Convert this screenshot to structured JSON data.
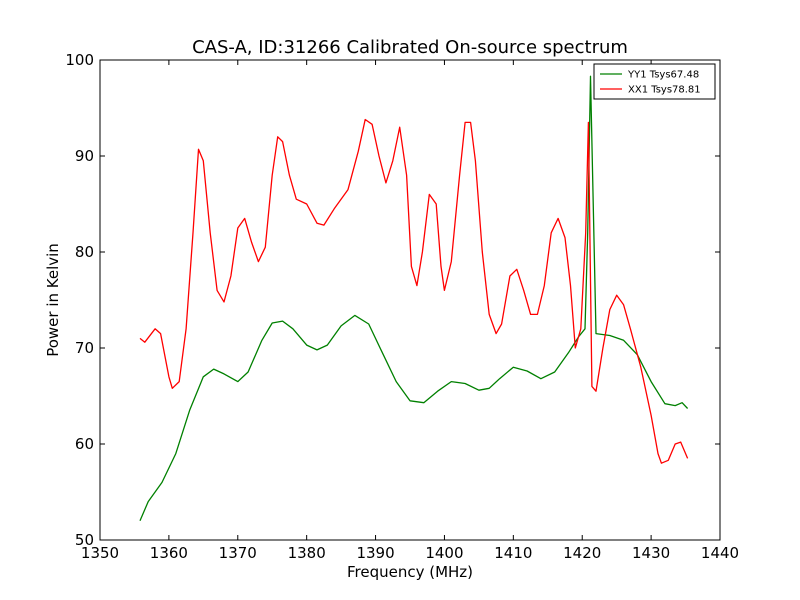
{
  "chart_data": {
    "type": "line",
    "title": "CAS-A, ID:31266 Calibrated On-source spectrum",
    "xlabel": "Frequency (MHz)",
    "ylabel": "Power in Kelvin",
    "xlim": [
      1350,
      1440
    ],
    "ylim": [
      50,
      100
    ],
    "xticks": [
      1350,
      1360,
      1370,
      1380,
      1390,
      1400,
      1410,
      1420,
      1430,
      1440
    ],
    "yticks": [
      50,
      60,
      70,
      80,
      90,
      100
    ],
    "grid": false,
    "legend_position": "top-right",
    "series": [
      {
        "name": "YY1 Tsys67.48",
        "color": "#008000",
        "x": [
          1355.8,
          1357,
          1359,
          1361,
          1363,
          1365,
          1366.5,
          1368,
          1370,
          1371.5,
          1373.5,
          1375,
          1376.5,
          1378,
          1380,
          1381.5,
          1383,
          1385,
          1387,
          1389,
          1391,
          1393,
          1395,
          1397,
          1399,
          1401,
          1403,
          1405,
          1406.5,
          1408,
          1410,
          1412,
          1414,
          1416,
          1418,
          1419.5,
          1420.4,
          1420.8,
          1421.2,
          1422,
          1424,
          1426,
          1428,
          1430,
          1432,
          1433.5,
          1434.5,
          1435.3
        ],
        "y": [
          52.0,
          54.0,
          56.0,
          59.0,
          63.5,
          67.0,
          67.8,
          67.3,
          66.5,
          67.5,
          70.8,
          72.6,
          72.8,
          72.0,
          70.3,
          69.8,
          70.3,
          72.3,
          73.4,
          72.5,
          69.5,
          66.5,
          64.5,
          64.3,
          65.5,
          66.5,
          66.3,
          65.6,
          65.8,
          66.8,
          68.0,
          67.6,
          66.8,
          67.5,
          69.5,
          71.2,
          72.0,
          82.0,
          98.3,
          71.5,
          71.3,
          70.8,
          69.3,
          66.5,
          64.2,
          64.0,
          64.3,
          63.7
        ]
      },
      {
        "name": "XX1 Tsys78.81",
        "color": "#ff0000",
        "x": [
          1355.8,
          1356.5,
          1358,
          1358.8,
          1360,
          1360.5,
          1361.5,
          1362.5,
          1363.5,
          1364.3,
          1365,
          1366,
          1367,
          1368,
          1369,
          1370,
          1371,
          1372,
          1373,
          1374,
          1375,
          1375.8,
          1376.5,
          1377.5,
          1378.5,
          1380,
          1381.5,
          1382.5,
          1384,
          1386,
          1387.5,
          1388.5,
          1389.5,
          1390.5,
          1391.5,
          1392.5,
          1393.5,
          1394.5,
          1395.2,
          1396,
          1396.8,
          1397.8,
          1398.8,
          1399.5,
          1400,
          1401,
          1402.2,
          1403,
          1403.8,
          1404.5,
          1405.5,
          1406.5,
          1407.5,
          1408.3,
          1409.5,
          1410.5,
          1411.5,
          1412.5,
          1413.5,
          1414.5,
          1415.5,
          1416.5,
          1417.5,
          1418.3,
          1419,
          1419.8,
          1420.5,
          1420.9,
          1421.4,
          1422,
          1423,
          1424,
          1425,
          1426,
          1427,
          1428.5,
          1430,
          1431,
          1431.5,
          1432.5,
          1433.5,
          1434.3,
          1435.3
        ],
        "y": [
          71.0,
          70.6,
          72.0,
          71.5,
          67.0,
          65.8,
          66.5,
          72.0,
          82.0,
          90.7,
          89.5,
          82.0,
          76.0,
          74.8,
          77.5,
          82.5,
          83.5,
          81.0,
          79.0,
          80.5,
          88.0,
          92.0,
          91.5,
          88.0,
          85.5,
          85.0,
          83.0,
          82.8,
          84.5,
          86.5,
          90.5,
          93.8,
          93.3,
          90.0,
          87.2,
          89.5,
          93.0,
          88.0,
          78.5,
          76.5,
          80.0,
          86.0,
          85.0,
          78.5,
          76.0,
          79.0,
          88.0,
          93.5,
          93.5,
          89.5,
          80.0,
          73.5,
          71.5,
          72.5,
          77.5,
          78.2,
          76.0,
          73.5,
          73.5,
          76.5,
          82.0,
          83.5,
          81.5,
          76.5,
          70.0,
          72.0,
          82.0,
          93.5,
          66.0,
          65.5,
          70.0,
          74.0,
          75.5,
          74.5,
          72.0,
          68.0,
          63.0,
          59.0,
          58.0,
          58.3,
          60.0,
          60.2,
          58.5
        ]
      }
    ]
  }
}
